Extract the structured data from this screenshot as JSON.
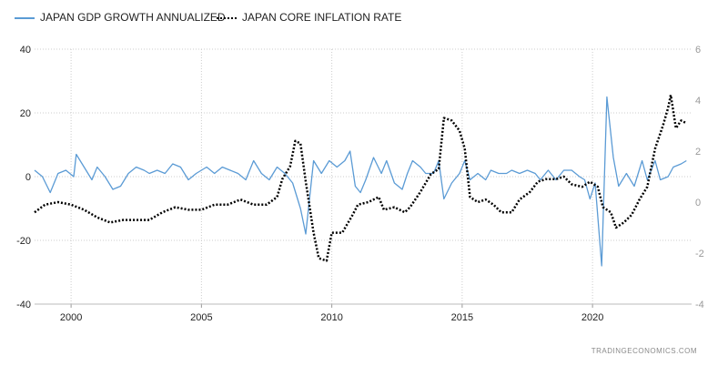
{
  "colors": {
    "gdp": "#5b9bd5",
    "inflation": "#000000",
    "grid": "#cccccc",
    "axis_text": "#222222",
    "right_axis_text": "#999999"
  },
  "attribution": "TRADINGECONOMICS.COM",
  "chart_data": {
    "type": "line",
    "title": "",
    "grid": true,
    "legend_position": "top-left",
    "x_axis": {
      "range": [
        1998.6,
        2023.8
      ],
      "ticks": [
        2000,
        2005,
        2010,
        2015,
        2020
      ],
      "tick_labels": [
        "2000",
        "2005",
        "2010",
        "2015",
        "2020"
      ]
    },
    "y_left": {
      "range": [
        -40,
        40
      ],
      "ticks": [
        40,
        20,
        0,
        -20,
        -40
      ],
      "tick_labels": [
        "40",
        "20",
        "0",
        "-20",
        "-40"
      ]
    },
    "y_right": {
      "range": [
        -4,
        6
      ],
      "ticks": [
        6,
        4,
        2,
        0,
        -2,
        -4
      ],
      "tick_labels": [
        "6",
        "4",
        "2",
        "0",
        "-2",
        "-4"
      ]
    },
    "series": [
      {
        "name": "JAPAN GDP GROWTH ANNUALIZED",
        "axis": "left",
        "style": "solid",
        "points": [
          [
            1998.6,
            2
          ],
          [
            1998.9,
            0
          ],
          [
            1999.2,
            -5
          ],
          [
            1999.5,
            1
          ],
          [
            1999.8,
            2
          ],
          [
            2000.1,
            0
          ],
          [
            2000.2,
            7
          ],
          [
            2000.5,
            3
          ],
          [
            2000.8,
            -1
          ],
          [
            2001.0,
            3
          ],
          [
            2001.3,
            0
          ],
          [
            2001.6,
            -4
          ],
          [
            2001.9,
            -3
          ],
          [
            2002.2,
            1
          ],
          [
            2002.5,
            3
          ],
          [
            2002.8,
            2
          ],
          [
            2003.0,
            1
          ],
          [
            2003.3,
            2
          ],
          [
            2003.6,
            1
          ],
          [
            2003.9,
            4
          ],
          [
            2004.2,
            3
          ],
          [
            2004.5,
            -1
          ],
          [
            2004.8,
            1
          ],
          [
            2005.2,
            3
          ],
          [
            2005.5,
            1
          ],
          [
            2005.8,
            3
          ],
          [
            2006.1,
            2
          ],
          [
            2006.4,
            1
          ],
          [
            2006.7,
            -1
          ],
          [
            2007.0,
            5
          ],
          [
            2007.3,
            1
          ],
          [
            2007.6,
            -1
          ],
          [
            2007.9,
            3
          ],
          [
            2008.2,
            1
          ],
          [
            2008.5,
            -2
          ],
          [
            2008.8,
            -10
          ],
          [
            2009.0,
            -18
          ],
          [
            2009.3,
            5
          ],
          [
            2009.6,
            1
          ],
          [
            2009.9,
            5
          ],
          [
            2010.2,
            3
          ],
          [
            2010.5,
            5
          ],
          [
            2010.7,
            8
          ],
          [
            2010.9,
            -3
          ],
          [
            2011.1,
            -5
          ],
          [
            2011.3,
            -1
          ],
          [
            2011.6,
            6
          ],
          [
            2011.9,
            1
          ],
          [
            2012.1,
            5
          ],
          [
            2012.4,
            -2
          ],
          [
            2012.7,
            -4
          ],
          [
            2012.9,
            1
          ],
          [
            2013.1,
            5
          ],
          [
            2013.4,
            3
          ],
          [
            2013.6,
            1
          ],
          [
            2013.9,
            1
          ],
          [
            2014.1,
            5
          ],
          [
            2014.3,
            -7
          ],
          [
            2014.6,
            -2
          ],
          [
            2014.9,
            1
          ],
          [
            2015.1,
            5
          ],
          [
            2015.3,
            -1
          ],
          [
            2015.6,
            1
          ],
          [
            2015.9,
            -1
          ],
          [
            2016.1,
            2
          ],
          [
            2016.4,
            1
          ],
          [
            2016.7,
            1
          ],
          [
            2016.9,
            2
          ],
          [
            2017.2,
            1
          ],
          [
            2017.5,
            2
          ],
          [
            2017.8,
            1
          ],
          [
            2018.0,
            -1
          ],
          [
            2018.3,
            2
          ],
          [
            2018.6,
            -1
          ],
          [
            2018.9,
            2
          ],
          [
            2019.2,
            2
          ],
          [
            2019.5,
            0
          ],
          [
            2019.7,
            -1
          ],
          [
            2019.9,
            -7
          ],
          [
            2020.1,
            -2
          ],
          [
            2020.35,
            -28
          ],
          [
            2020.55,
            25
          ],
          [
            2020.8,
            6
          ],
          [
            2021.0,
            -3
          ],
          [
            2021.3,
            1
          ],
          [
            2021.6,
            -3
          ],
          [
            2021.9,
            5
          ],
          [
            2022.1,
            -1
          ],
          [
            2022.4,
            5
          ],
          [
            2022.6,
            -1
          ],
          [
            2022.9,
            0
          ],
          [
            2023.1,
            3
          ],
          [
            2023.4,
            4
          ],
          [
            2023.6,
            5
          ]
        ]
      },
      {
        "name": "JAPAN CORE INFLATION RATE",
        "axis": "right",
        "style": "dotted",
        "points": [
          [
            1998.6,
            -0.4
          ],
          [
            1999.0,
            -0.1
          ],
          [
            1999.5,
            0.0
          ],
          [
            2000.0,
            -0.1
          ],
          [
            2000.5,
            -0.3
          ],
          [
            2001.0,
            -0.6
          ],
          [
            2001.5,
            -0.8
          ],
          [
            2002.0,
            -0.7
          ],
          [
            2002.5,
            -0.7
          ],
          [
            2003.0,
            -0.7
          ],
          [
            2003.5,
            -0.4
          ],
          [
            2004.0,
            -0.2
          ],
          [
            2004.5,
            -0.3
          ],
          [
            2005.0,
            -0.3
          ],
          [
            2005.5,
            -0.1
          ],
          [
            2006.0,
            -0.1
          ],
          [
            2006.5,
            0.1
          ],
          [
            2007.0,
            -0.1
          ],
          [
            2007.5,
            -0.1
          ],
          [
            2007.9,
            0.2
          ],
          [
            2008.1,
            0.9
          ],
          [
            2008.4,
            1.4
          ],
          [
            2008.6,
            2.4
          ],
          [
            2008.8,
            2.3
          ],
          [
            2009.0,
            0.8
          ],
          [
            2009.3,
            -1.2
          ],
          [
            2009.5,
            -2.2
          ],
          [
            2009.8,
            -2.3
          ],
          [
            2010.0,
            -1.2
          ],
          [
            2010.4,
            -1.2
          ],
          [
            2010.8,
            -0.5
          ],
          [
            2011.0,
            -0.1
          ],
          [
            2011.4,
            0.0
          ],
          [
            2011.8,
            0.2
          ],
          [
            2012.0,
            -0.3
          ],
          [
            2012.4,
            -0.2
          ],
          [
            2012.8,
            -0.4
          ],
          [
            2013.0,
            -0.2
          ],
          [
            2013.4,
            0.4
          ],
          [
            2013.8,
            1.1
          ],
          [
            2014.1,
            1.3
          ],
          [
            2014.3,
            3.3
          ],
          [
            2014.6,
            3.2
          ],
          [
            2014.9,
            2.8
          ],
          [
            2015.1,
            2.1
          ],
          [
            2015.3,
            0.2
          ],
          [
            2015.6,
            0.0
          ],
          [
            2015.9,
            0.1
          ],
          [
            2016.2,
            -0.1
          ],
          [
            2016.5,
            -0.4
          ],
          [
            2016.9,
            -0.4
          ],
          [
            2017.2,
            0.1
          ],
          [
            2017.6,
            0.4
          ],
          [
            2017.9,
            0.8
          ],
          [
            2018.2,
            0.9
          ],
          [
            2018.6,
            0.9
          ],
          [
            2018.9,
            1.0
          ],
          [
            2019.2,
            0.7
          ],
          [
            2019.6,
            0.6
          ],
          [
            2019.9,
            0.8
          ],
          [
            2020.2,
            0.6
          ],
          [
            2020.4,
            -0.2
          ],
          [
            2020.7,
            -0.4
          ],
          [
            2020.9,
            -1.0
          ],
          [
            2021.2,
            -0.8
          ],
          [
            2021.5,
            -0.5
          ],
          [
            2021.8,
            0.1
          ],
          [
            2022.1,
            0.6
          ],
          [
            2022.4,
            2.1
          ],
          [
            2022.7,
            3.0
          ],
          [
            2022.9,
            3.7
          ],
          [
            2023.0,
            4.2
          ],
          [
            2023.2,
            2.9
          ],
          [
            2023.4,
            3.2
          ],
          [
            2023.6,
            3.1
          ]
        ]
      }
    ]
  }
}
